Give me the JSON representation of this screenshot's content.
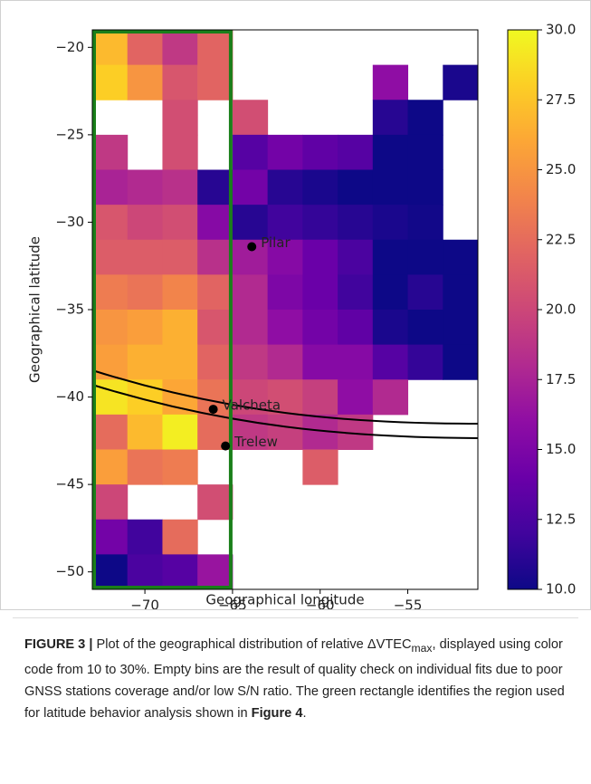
{
  "chart_data": {
    "type": "heatmap",
    "xlabel": "Geographical longitude",
    "ylabel": "Geographical latitude",
    "xbins": [
      -73,
      -71,
      -69,
      -67,
      -65,
      -63,
      -61,
      -59,
      -57,
      -55,
      -53,
      -51
    ],
    "ybins": [
      -19,
      -21,
      -23,
      -25,
      -27,
      -29,
      -31,
      -33,
      -35,
      -37,
      -39,
      -41,
      -43,
      -45,
      -47,
      -49,
      -51
    ],
    "xlim": [
      -73,
      -51
    ],
    "ylim": [
      -51,
      -19
    ],
    "xticks": [
      {
        "value": -70,
        "label": "−70"
      },
      {
        "value": -65,
        "label": "−65"
      },
      {
        "value": -60,
        "label": "−60"
      },
      {
        "value": -55,
        "label": "−55"
      }
    ],
    "yticks": [
      {
        "value": -20,
        "label": "−20"
      },
      {
        "value": -25,
        "label": "−25"
      },
      {
        "value": -30,
        "label": "−30"
      },
      {
        "value": -35,
        "label": "−35"
      },
      {
        "value": -40,
        "label": "−40"
      },
      {
        "value": -45,
        "label": "−45"
      },
      {
        "value": -50,
        "label": "−50"
      }
    ],
    "values": [
      [
        27,
        22,
        19,
        22,
        null,
        null,
        null,
        null,
        null,
        null,
        null
      ],
      [
        28,
        25,
        21,
        22,
        null,
        null,
        null,
        null,
        16,
        null,
        10.5
      ],
      [
        null,
        null,
        20.5,
        null,
        20.5,
        null,
        null,
        null,
        11,
        10,
        null
      ],
      [
        19,
        null,
        20.5,
        null,
        13,
        14.5,
        13.5,
        13,
        10,
        10,
        null
      ],
      [
        17.5,
        18,
        18.5,
        11,
        14.5,
        11,
        10.5,
        10,
        10,
        10,
        null
      ],
      [
        21,
        20,
        20.5,
        15.5,
        11,
        12,
        11.5,
        11,
        10.5,
        10.2,
        null
      ],
      [
        21.5,
        21.5,
        21.5,
        18.5,
        17,
        15.5,
        14,
        12.5,
        10,
        10,
        10
      ],
      [
        23.5,
        23,
        24,
        22,
        18,
        15,
        14,
        12,
        10,
        11,
        10
      ],
      [
        25,
        25.5,
        26.5,
        21,
        18,
        16,
        14.5,
        13.5,
        10.5,
        10,
        10
      ],
      [
        25.5,
        26.5,
        26.5,
        22,
        19,
        18,
        15.5,
        15.5,
        13,
        11.5,
        10
      ],
      [
        29,
        28,
        26,
        23,
        20,
        20.5,
        19.5,
        16,
        18,
        null,
        null
      ],
      [
        22.5,
        27,
        29.5,
        22.5,
        19,
        19.5,
        18,
        19,
        null,
        null,
        null
      ],
      [
        25.5,
        23,
        23.5,
        null,
        null,
        null,
        21.5,
        null,
        null,
        null,
        null
      ],
      [
        20,
        null,
        null,
        20.5,
        null,
        null,
        null,
        null,
        null,
        null,
        null
      ],
      [
        14.5,
        12,
        22.5,
        null,
        null,
        null,
        null,
        null,
        null,
        null,
        null
      ],
      [
        10,
        12.5,
        13,
        16.5,
        null,
        null,
        null,
        null,
        null,
        null,
        null
      ]
    ],
    "colormap": [
      "#0d0887",
      "#41049d",
      "#6a00a8",
      "#8f0da4",
      "#b12a90",
      "#cc4778",
      "#e16462",
      "#f2844b",
      "#fca636",
      "#fcce25",
      "#f0f921"
    ],
    "colorbar": {
      "lim": [
        10,
        30
      ],
      "ticks": [
        {
          "value": 10,
          "label": "10.0"
        },
        {
          "value": 12.5,
          "label": "12.5"
        },
        {
          "value": 15,
          "label": "15.0"
        },
        {
          "value": 17.5,
          "label": "17.5"
        },
        {
          "value": 20,
          "label": "20.0"
        },
        {
          "value": 22.5,
          "label": "22.5"
        },
        {
          "value": 25,
          "label": "25.0"
        },
        {
          "value": 27.5,
          "label": "27.5"
        },
        {
          "value": 30,
          "label": "30.0"
        }
      ]
    },
    "highlight": {
      "xlim": [
        -73,
        -65
      ],
      "ylim": [
        -51,
        -19
      ],
      "color": "#1a7f1a"
    },
    "annotations": [
      {
        "label": "Pilar",
        "x": -63.9,
        "y": -31.4
      },
      {
        "label": "Valcheta",
        "x": -66.1,
        "y": -40.7
      },
      {
        "label": "Trelew",
        "x": -65.4,
        "y": -42.8
      }
    ]
  },
  "caption": {
    "label": "FIGURE 3 |",
    "text1": " Plot of the geographical distribution of relative ΔVTEC",
    "sub": "max",
    "text2": ", displayed using color code from 10 to 30%. Empty bins are the result of quality check on individual fits due to poor GNSS stations coverage and/or low S/N ratio. The green rectangle identifies the region used for latitude behavior analysis shown in ",
    "ref": "Figure 4",
    "end": "."
  }
}
